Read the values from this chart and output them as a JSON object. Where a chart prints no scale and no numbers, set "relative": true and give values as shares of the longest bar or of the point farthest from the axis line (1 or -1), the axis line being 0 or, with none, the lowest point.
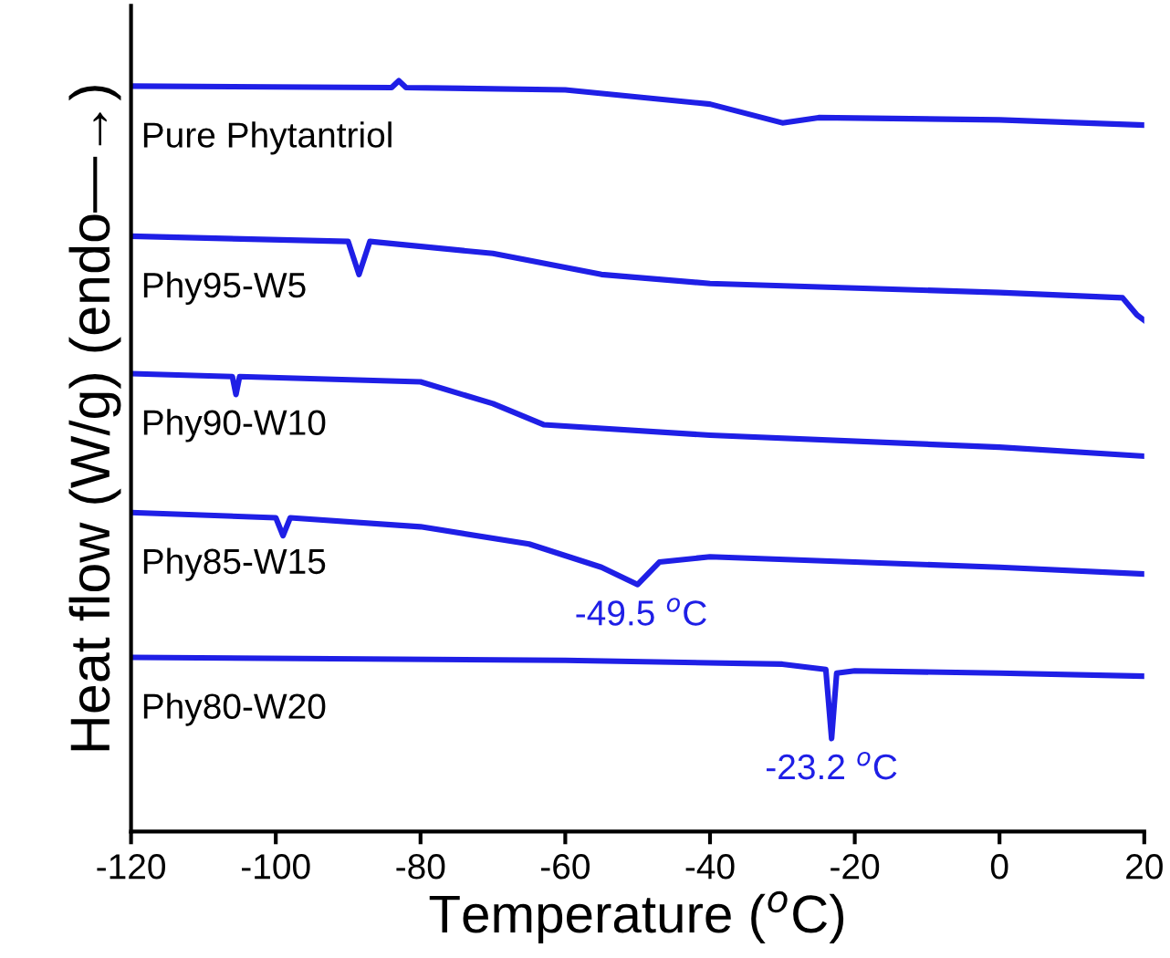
{
  "chart_data": {
    "type": "line",
    "relative": true,
    "xlabel": "Temperature ($^{o}$C)",
    "ylabel": "Heat flow (W/g) (endo—→)",
    "xlim": [
      -120,
      20
    ],
    "xticks": [
      -120,
      -100,
      -80,
      -60,
      -40,
      -20,
      0,
      20
    ],
    "grid": false,
    "legend": false,
    "marker": "none",
    "line_style": "solid",
    "series": [
      {
        "name": "Pure Phytantriol",
        "color": "#1f1fe6",
        "x": [
          -120,
          -84,
          -83,
          -82,
          -60,
          -40,
          -30,
          -25,
          0,
          20
        ],
        "values": [
          0.993,
          0.991,
          1.0,
          0.991,
          0.988,
          0.969,
          0.944,
          0.951,
          0.948,
          0.941
        ]
      },
      {
        "name": "Phy95-W5",
        "color": "#1f1fe6",
        "x": [
          -120,
          -90,
          -88.5,
          -87,
          -70,
          -55,
          -40,
          0,
          17,
          19,
          20
        ],
        "values": [
          0.793,
          0.786,
          0.742,
          0.786,
          0.77,
          0.742,
          0.73,
          0.718,
          0.711,
          0.688,
          0.681
        ]
      },
      {
        "name": "Phy90-W10",
        "color": "#1f1fe6",
        "x": [
          -120,
          -106,
          -105.5,
          -105,
          -80,
          -70,
          -63,
          -40,
          0,
          20
        ],
        "values": [
          0.61,
          0.606,
          0.582,
          0.606,
          0.599,
          0.57,
          0.542,
          0.528,
          0.512,
          0.5
        ]
      },
      {
        "name": "Phy85-W15",
        "color": "#1f1fe6",
        "x": [
          -120,
          -100,
          -99,
          -98,
          -80,
          -65,
          -55,
          -50,
          -47,
          -40,
          -20,
          0,
          20
        ],
        "values": [
          0.425,
          0.418,
          0.394,
          0.418,
          0.406,
          0.383,
          0.352,
          0.329,
          0.359,
          0.366,
          0.359,
          0.352,
          0.343
        ]
      },
      {
        "name": "Phy80-W20",
        "color": "#1f1fe6",
        "x": [
          -120,
          -60,
          -30,
          -24,
          -23.2,
          -22.5,
          -20,
          0,
          20
        ],
        "values": [
          0.232,
          0.228,
          0.223,
          0.216,
          0.124,
          0.211,
          0.214,
          0.211,
          0.207
        ]
      }
    ],
    "annotations": [
      {
        "text": "-49.5 $^{o}$C",
        "x": -49.5,
        "y": 0.329
      },
      {
        "text": "-23.2 $^{o}$C",
        "x": -23.2,
        "y": 0.124
      }
    ]
  }
}
